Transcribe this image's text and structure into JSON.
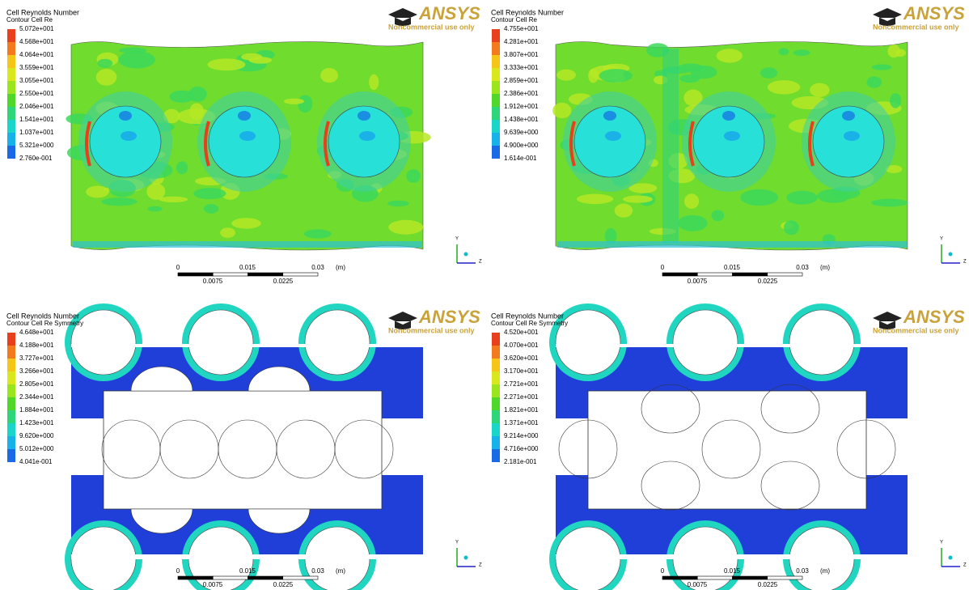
{
  "panels": [
    {
      "legend_title": "Cell Reynolds Number",
      "legend_subtitle": "Contour Cell Re",
      "legend_labels": [
        "5.072e+001",
        "4.568e+001",
        "4.064e+001",
        "3.559e+001",
        "3.055e+001",
        "2.550e+001",
        "2.046e+001",
        "1.541e+001",
        "1.037e+001",
        "5.321e+000",
        "2.760e-001"
      ],
      "logo": "ANSYS",
      "logo_note": "Noncommercial use only",
      "scale_labels": [
        "0",
        "0.015",
        "0.03",
        "(m)"
      ],
      "scale_sublabels": [
        "0.0075",
        "0.0225"
      ],
      "axis_labels": [
        "Y",
        "Z"
      ]
    },
    {
      "legend_title": "Cell Reynolds Number",
      "legend_subtitle": "Contour Cell Re",
      "legend_labels": [
        "4.755e+001",
        "4.281e+001",
        "3.807e+001",
        "3.333e+001",
        "2.859e+001",
        "2.386e+001",
        "1.912e+001",
        "1.438e+001",
        "9.639e+000",
        "4.900e+000",
        "1.614e-001"
      ],
      "logo": "ANSYS",
      "logo_note": "Noncommercial use only",
      "scale_labels": [
        "0",
        "0.015",
        "0.03",
        "(m)"
      ],
      "scale_sublabels": [
        "0.0075",
        "0.0225"
      ],
      "axis_labels": [
        "Y",
        "Z"
      ]
    },
    {
      "legend_title": "Cell Reynolds Number",
      "legend_subtitle": "Contour Cell Re Symmetry",
      "legend_labels": [
        "4.648e+001",
        "4.188e+001",
        "3.727e+001",
        "3.266e+001",
        "2.805e+001",
        "2.344e+001",
        "1.884e+001",
        "1.423e+001",
        "9.620e+000",
        "5.012e+000",
        "4.041e-001"
      ],
      "logo": "ANSYS",
      "logo_note": "Noncommercial use only",
      "scale_labels": [
        "0",
        "0.015",
        "0.03",
        "(m)"
      ],
      "scale_sublabels": [
        "0.0075",
        "0.0225"
      ],
      "axis_labels": [
        "Y",
        "Z"
      ]
    },
    {
      "legend_title": "Cell Reynolds Number",
      "legend_subtitle": "Contour Cell Re Symmetry",
      "legend_labels": [
        "4.520e+001",
        "4.070e+001",
        "3.620e+001",
        "3.170e+001",
        "2.721e+001",
        "2.271e+001",
        "1.821e+001",
        "1.371e+001",
        "9.214e+000",
        "4.716e+000",
        "2.181e-001"
      ],
      "logo": "ANSYS",
      "logo_note": "Noncommercial use only",
      "scale_labels": [
        "0",
        "0.015",
        "0.03",
        "(m)"
      ],
      "scale_sublabels": [
        "0.0075",
        "0.0225"
      ],
      "axis_labels": [
        "Y",
        "Z"
      ]
    }
  ]
}
